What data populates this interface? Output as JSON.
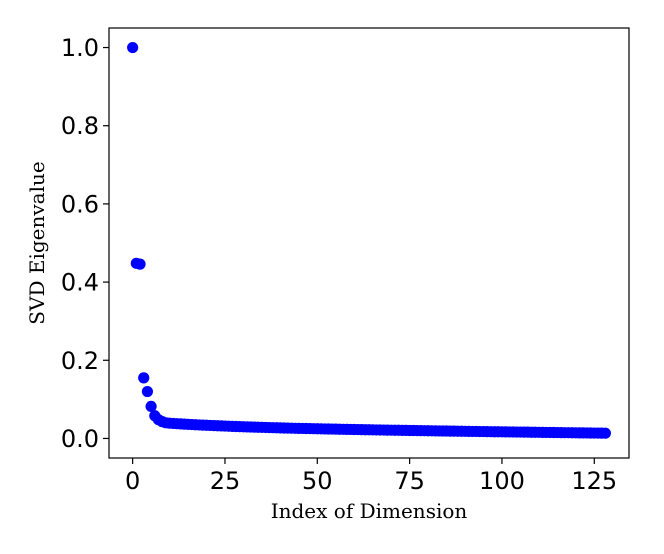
{
  "chart_data": {
    "type": "scatter",
    "xlabel": "Index of Dimension",
    "ylabel": "SVD Eigenvalue",
    "xlim": [
      -6.4,
      134.4
    ],
    "ylim": [
      -0.05,
      1.05
    ],
    "xticks": [
      0,
      25,
      50,
      75,
      100,
      125
    ],
    "yticks": [
      0.0,
      0.2,
      0.4,
      0.6,
      0.8,
      1.0
    ],
    "xtick_labels": [
      "0",
      "25",
      "50",
      "75",
      "100",
      "125"
    ],
    "ytick_labels": [
      "0.0",
      "0.2",
      "0.4",
      "0.6",
      "0.8",
      "1.0"
    ],
    "grid": false,
    "marker_color": "#0000ff",
    "series": [
      {
        "x": [
          0,
          1,
          2,
          3,
          4,
          5,
          6,
          7,
          8,
          9,
          10,
          11,
          12,
          13,
          14,
          15,
          16,
          17,
          18,
          19,
          20,
          21,
          22,
          23,
          24,
          25,
          26,
          27,
          28,
          29,
          30,
          31,
          32,
          33,
          34,
          35,
          36,
          37,
          38,
          39,
          40,
          41,
          42,
          43,
          44,
          45,
          46,
          47,
          48,
          49,
          50,
          51,
          52,
          53,
          54,
          55,
          56,
          57,
          58,
          59,
          60,
          61,
          62,
          63,
          64,
          65,
          66,
          67,
          68,
          69,
          70,
          71,
          72,
          73,
          74,
          75,
          76,
          77,
          78,
          79,
          80,
          81,
          82,
          83,
          84,
          85,
          86,
          87,
          88,
          89,
          90,
          91,
          92,
          93,
          94,
          95,
          96,
          97,
          98,
          99,
          100,
          101,
          102,
          103,
          104,
          105,
          106,
          107,
          108,
          109,
          110,
          111,
          112,
          113,
          114,
          115,
          116,
          117,
          118,
          119,
          120,
          121,
          122,
          123,
          124,
          125,
          126,
          127,
          128
        ],
        "y": [
          1.0,
          0.448,
          0.446,
          0.155,
          0.12,
          0.082,
          0.058,
          0.048,
          0.043,
          0.04,
          0.039,
          0.0384,
          0.0378,
          0.0372,
          0.0366,
          0.0361,
          0.0356,
          0.0351,
          0.0346,
          0.0341,
          0.0337,
          0.0333,
          0.0329,
          0.0325,
          0.0321,
          0.0317,
          0.0313,
          0.0309,
          0.0306,
          0.0302,
          0.0299,
          0.0296,
          0.0293,
          0.029,
          0.0287,
          0.0284,
          0.0281,
          0.0278,
          0.0275,
          0.0273,
          0.027,
          0.0268,
          0.0265,
          0.0263,
          0.026,
          0.0258,
          0.0256,
          0.0254,
          0.0252,
          0.025,
          0.0248,
          0.0246,
          0.0244,
          0.0242,
          0.024,
          0.0238,
          0.0236,
          0.0234,
          0.0232,
          0.023,
          0.0229,
          0.0227,
          0.0225,
          0.0223,
          0.0222,
          0.022,
          0.0218,
          0.0217,
          0.0215,
          0.0213,
          0.0212,
          0.021,
          0.0209,
          0.0207,
          0.0206,
          0.0204,
          0.0203,
          0.0201,
          0.02,
          0.0198,
          0.0197,
          0.0195,
          0.0194,
          0.0192,
          0.0191,
          0.019,
          0.0188,
          0.0187,
          0.0185,
          0.0184,
          0.0183,
          0.0181,
          0.018,
          0.0179,
          0.0177,
          0.0176,
          0.0175,
          0.0173,
          0.0172,
          0.0171,
          0.017,
          0.0168,
          0.0167,
          0.0166,
          0.0164,
          0.0163,
          0.0162,
          0.0161,
          0.0159,
          0.0158,
          0.0157,
          0.0156,
          0.0154,
          0.0153,
          0.0152,
          0.0151,
          0.0149,
          0.0148,
          0.0147,
          0.0146,
          0.0144,
          0.0143,
          0.0142,
          0.0141,
          0.014,
          0.0138,
          0.0137,
          0.0136,
          0.0135
        ]
      }
    ]
  }
}
